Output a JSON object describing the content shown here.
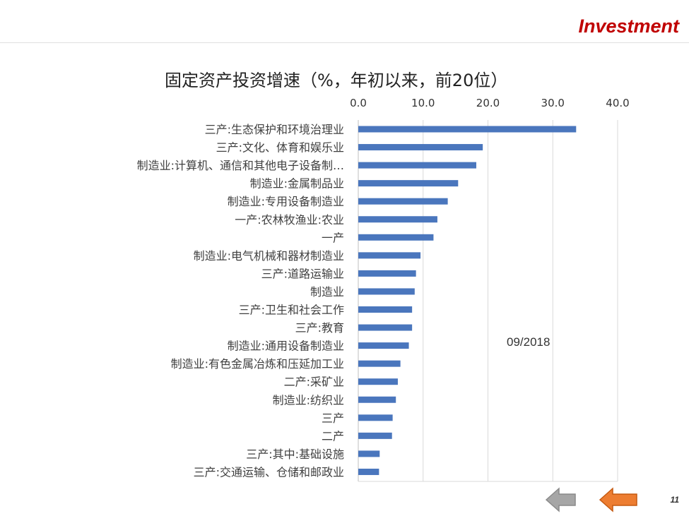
{
  "header": {
    "title": "Investment"
  },
  "page_number": "11",
  "colors": {
    "bar": "#4a76bd",
    "header_accent": "#c00000",
    "nav_back": "#a6a6a6",
    "nav_forward": "#ed7d31"
  },
  "nav": {
    "back_icon": "arrow-left-gray-icon",
    "forward_icon": "arrow-left-orange-icon"
  },
  "chart_data": {
    "type": "bar",
    "orientation": "horizontal",
    "title": "固定资产投资增速（%，年初以来，前20位）",
    "annotation": "09/2018",
    "xlim": [
      0,
      40
    ],
    "xticks": [
      "0.0",
      "10.0",
      "20.0",
      "30.0",
      "40.0"
    ],
    "x_axis_position": "top",
    "grid": true,
    "categories": [
      "三产:生态保护和环境治理业",
      "三产:文化、体育和娱乐业",
      "制造业:计算机、通信和其他电子设备制…",
      "制造业:金属制品业",
      "制造业:专用设备制造业",
      "一产:农林牧渔业:农业",
      "一产",
      "制造业:电气机械和器材制造业",
      "三产:道路运输业",
      "制造业",
      "三产:卫生和社会工作",
      "三产:教育",
      "制造业:通用设备制造业",
      "制造业:有色金属冶炼和压延加工业",
      "二产:采矿业",
      "制造业:纺织业",
      "三产",
      "二产",
      "三产:其中:基础设施",
      "三产:交通运输、仓储和邮政业"
    ],
    "values": [
      33.6,
      19.2,
      18.2,
      15.4,
      13.8,
      12.2,
      11.6,
      9.6,
      8.9,
      8.7,
      8.3,
      8.3,
      7.8,
      6.5,
      6.1,
      5.8,
      5.3,
      5.2,
      3.3,
      3.2
    ]
  }
}
